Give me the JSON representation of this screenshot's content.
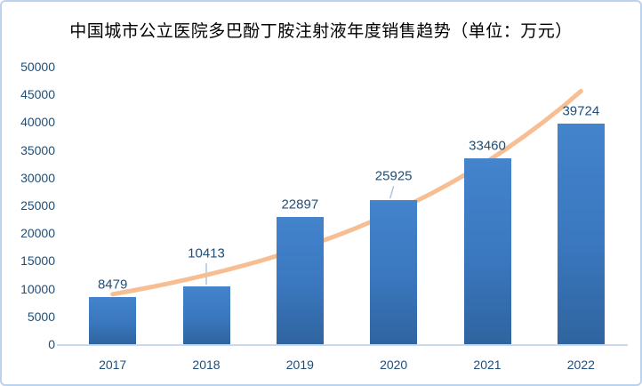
{
  "window": {
    "background": "#FFFFFF",
    "border_color": "#BCD3EE"
  },
  "chart_data": {
    "type": "bar",
    "title": "中国城市公立医院多巴酚丁胺注射液年度销售趋势（单位：万元）",
    "categories": [
      "2017",
      "2018",
      "2019",
      "2020",
      "2021",
      "2022"
    ],
    "values": [
      8479,
      10413,
      22897,
      25925,
      33460,
      39724
    ],
    "data_labels": [
      "8479",
      "10413",
      "22897",
      "25925",
      "33460",
      "39724"
    ],
    "label_callout": [
      false,
      true,
      false,
      true,
      false,
      false
    ],
    "xlabel": "",
    "ylabel": "",
    "ylim": [
      0,
      50000
    ],
    "yticks": [
      0,
      5000,
      10000,
      15000,
      20000,
      25000,
      30000,
      35000,
      40000,
      45000,
      50000
    ],
    "grid": false,
    "legend_position": "none",
    "colors": {
      "bar_top": "#4384CD",
      "bar_bottom": "#2F649F",
      "data_label": "#1F4E79",
      "tick_label": "#1F4E79",
      "axis_line": "#C9D9EE",
      "trendline": "#F6BE92",
      "leader_line": "#A9C6E8",
      "title": "#000000"
    },
    "trendline": {
      "type": "exponential",
      "color": "#F6BE92",
      "fit_values_at_categories": [
        9010,
        12460,
        17230,
        23830,
        32970,
        45590
      ]
    }
  }
}
